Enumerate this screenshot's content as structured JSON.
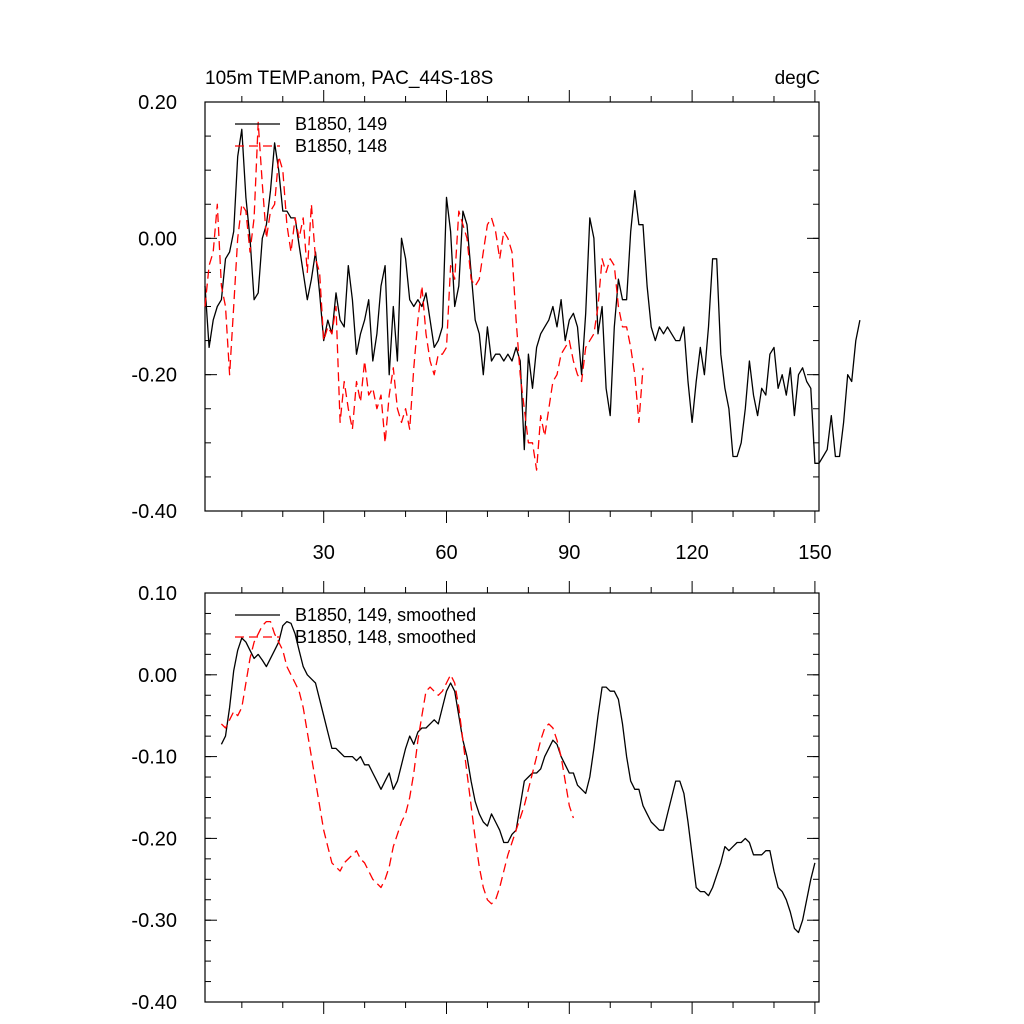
{
  "chart_data": [
    {
      "type": "line",
      "title_left": "105m TEMP.anom, PAC_44S-18S",
      "title_right": "degC",
      "xlim": [
        1,
        151
      ],
      "ylim": [
        -0.4,
        0.2
      ],
      "xticks": [
        30,
        60,
        90,
        120,
        150
      ],
      "yticks": [
        0.2,
        0.0,
        -0.2,
        -0.4
      ],
      "yticklabels": [
        "0.20",
        "0.00",
        "-0.20",
        "-0.40"
      ],
      "legend_position": "top-left",
      "series": [
        {
          "name": "B1850, 149",
          "color": "#000000",
          "dash": "solid",
          "x_start": 1,
          "values": [
            -0.07,
            -0.16,
            -0.12,
            -0.1,
            -0.09,
            -0.03,
            -0.02,
            0.01,
            0.12,
            0.16,
            0.06,
            0.0,
            -0.09,
            -0.08,
            0.0,
            0.02,
            0.07,
            0.14,
            0.1,
            0.04,
            0.04,
            0.03,
            0.03,
            -0.01,
            -0.05,
            -0.09,
            -0.06,
            -0.02,
            -0.08,
            -0.15,
            -0.12,
            -0.14,
            -0.08,
            -0.12,
            -0.13,
            -0.04,
            -0.09,
            -0.17,
            -0.14,
            -0.12,
            -0.09,
            -0.18,
            -0.14,
            -0.07,
            -0.04,
            -0.2,
            -0.1,
            -0.18,
            0.0,
            -0.03,
            -0.09,
            -0.1,
            -0.09,
            -0.1,
            -0.08,
            -0.12,
            -0.16,
            -0.15,
            -0.13,
            0.06,
            0.01,
            -0.1,
            -0.07,
            0.04,
            0.02,
            -0.05,
            -0.12,
            -0.14,
            -0.2,
            -0.13,
            -0.18,
            -0.17,
            -0.17,
            -0.18,
            -0.17,
            -0.18,
            -0.16,
            -0.18,
            -0.31,
            -0.17,
            -0.22,
            -0.16,
            -0.14,
            -0.13,
            -0.12,
            -0.1,
            -0.13,
            -0.09,
            -0.15,
            -0.12,
            -0.11,
            -0.13,
            -0.2,
            -0.11,
            0.03,
            0.0,
            -0.14,
            -0.1,
            -0.22,
            -0.26,
            -0.13,
            -0.06,
            -0.09,
            -0.09,
            0.01,
            0.07,
            0.02,
            0.02,
            -0.07,
            -0.13,
            -0.15,
            -0.13,
            -0.14,
            -0.13,
            -0.14,
            -0.15,
            -0.15,
            -0.13,
            -0.21,
            -0.27,
            -0.21,
            -0.16,
            -0.2,
            -0.13,
            -0.03,
            -0.03,
            -0.17,
            -0.22,
            -0.25,
            -0.32,
            -0.32,
            -0.3,
            -0.25,
            -0.18,
            -0.23,
            -0.26,
            -0.22,
            -0.23,
            -0.17,
            -0.16,
            -0.22,
            -0.2,
            -0.23,
            -0.19,
            -0.26,
            -0.2,
            -0.19,
            -0.21,
            -0.22,
            -0.33,
            -0.33,
            -0.32,
            -0.31,
            -0.26,
            -0.32,
            -0.32,
            -0.27,
            -0.2,
            -0.21,
            -0.15,
            -0.12
          ]
        },
        {
          "name": "B1850, 148",
          "color": "#ff0000",
          "dash": "dashed",
          "x_start": 1,
          "values": [
            -0.1,
            -0.04,
            -0.02,
            0.05,
            -0.07,
            -0.1,
            -0.2,
            -0.1,
            0.0,
            0.05,
            0.04,
            -0.02,
            0.03,
            0.17,
            0.08,
            0.0,
            0.04,
            0.05,
            0.12,
            0.1,
            0.02,
            -0.02,
            0.03,
            0.0,
            0.03,
            -0.05,
            0.05,
            -0.03,
            -0.05,
            -0.15,
            -0.13,
            -0.14,
            -0.1,
            -0.27,
            -0.21,
            -0.25,
            -0.28,
            -0.21,
            -0.24,
            -0.18,
            -0.23,
            -0.22,
            -0.25,
            -0.23,
            -0.3,
            -0.23,
            -0.19,
            -0.25,
            -0.27,
            -0.25,
            -0.28,
            -0.19,
            -0.12,
            -0.07,
            -0.14,
            -0.18,
            -0.2,
            -0.17,
            -0.17,
            -0.16,
            -0.04,
            -0.06,
            0.04,
            0.02,
            0.0,
            -0.06,
            -0.07,
            -0.06,
            -0.02,
            0.02,
            0.03,
            0.01,
            -0.03,
            0.01,
            0.0,
            -0.02,
            -0.12,
            -0.2,
            -0.25,
            -0.3,
            -0.3,
            -0.34,
            -0.26,
            -0.29,
            -0.25,
            -0.21,
            -0.2,
            -0.17,
            -0.16,
            -0.15,
            -0.18,
            -0.2,
            -0.21,
            -0.16,
            -0.15,
            -0.14,
            -0.1,
            -0.03,
            -0.05,
            -0.03,
            -0.04,
            -0.1,
            -0.13,
            -0.13,
            -0.16,
            -0.2,
            -0.27,
            -0.19
          ]
        }
      ]
    },
    {
      "type": "line",
      "xlim": [
        1,
        151
      ],
      "ylim": [
        -0.4,
        0.1
      ],
      "xticks": [
        30,
        60,
        90,
        120,
        150
      ],
      "yticks": [
        0.1,
        0.0,
        -0.1,
        -0.2,
        -0.3,
        -0.4
      ],
      "yticklabels": [
        "0.10",
        "0.00",
        "-0.10",
        "-0.20",
        "-0.30",
        "-0.40"
      ],
      "legend_position": "top-left",
      "series": [
        {
          "name": "B1850, 149, smoothed",
          "color": "#000000",
          "dash": "solid",
          "x_start": 5,
          "values": [
            -0.085,
            -0.075,
            -0.04,
            0.005,
            0.03,
            0.045,
            0.04,
            0.03,
            0.02,
            0.025,
            0.018,
            0.01,
            0.02,
            0.03,
            0.04,
            0.06,
            0.065,
            0.063,
            0.05,
            0.03,
            0.01,
            0.0,
            -0.005,
            -0.01,
            -0.03,
            -0.05,
            -0.07,
            -0.09,
            -0.09,
            -0.095,
            -0.1,
            -0.1,
            -0.1,
            -0.105,
            -0.1,
            -0.11,
            -0.11,
            -0.12,
            -0.13,
            -0.14,
            -0.13,
            -0.12,
            -0.14,
            -0.13,
            -0.11,
            -0.09,
            -0.075,
            -0.085,
            -0.07,
            -0.065,
            -0.065,
            -0.06,
            -0.055,
            -0.06,
            -0.04,
            -0.02,
            -0.01,
            -0.02,
            -0.05,
            -0.08,
            -0.1,
            -0.13,
            -0.155,
            -0.17,
            -0.18,
            -0.185,
            -0.17,
            -0.18,
            -0.19,
            -0.205,
            -0.205,
            -0.195,
            -0.19,
            -0.16,
            -0.13,
            -0.125,
            -0.12,
            -0.12,
            -0.115,
            -0.1,
            -0.09,
            -0.08,
            -0.085,
            -0.1,
            -0.11,
            -0.12,
            -0.12,
            -0.135,
            -0.14,
            -0.145,
            -0.125,
            -0.09,
            -0.05,
            -0.015,
            -0.015,
            -0.02,
            -0.02,
            -0.03,
            -0.06,
            -0.1,
            -0.13,
            -0.14,
            -0.14,
            -0.16,
            -0.17,
            -0.18,
            -0.185,
            -0.19,
            -0.19,
            -0.17,
            -0.15,
            -0.13,
            -0.13,
            -0.145,
            -0.18,
            -0.22,
            -0.26,
            -0.265,
            -0.265,
            -0.27,
            -0.26,
            -0.245,
            -0.23,
            -0.21,
            -0.215,
            -0.21,
            -0.205,
            -0.205,
            -0.2,
            -0.205,
            -0.22,
            -0.22,
            -0.22,
            -0.215,
            -0.215,
            -0.24,
            -0.26,
            -0.265,
            -0.275,
            -0.29,
            -0.31,
            -0.315,
            -0.3,
            -0.275,
            -0.25,
            -0.23
          ]
        },
        {
          "name": "B1850, 148, smoothed",
          "color": "#ff0000",
          "dash": "dashed",
          "x_start": 5,
          "values": [
            -0.06,
            -0.065,
            -0.055,
            -0.045,
            -0.05,
            -0.04,
            -0.01,
            0.02,
            0.04,
            0.05,
            0.06,
            0.065,
            0.065,
            0.05,
            0.04,
            0.03,
            0.01,
            0.0,
            -0.01,
            -0.02,
            -0.04,
            -0.07,
            -0.1,
            -0.13,
            -0.16,
            -0.19,
            -0.21,
            -0.23,
            -0.235,
            -0.24,
            -0.23,
            -0.225,
            -0.22,
            -0.215,
            -0.225,
            -0.23,
            -0.24,
            -0.25,
            -0.255,
            -0.26,
            -0.25,
            -0.235,
            -0.21,
            -0.195,
            -0.18,
            -0.17,
            -0.15,
            -0.12,
            -0.08,
            -0.05,
            -0.02,
            -0.015,
            -0.02,
            -0.025,
            -0.02,
            -0.01,
            0.0,
            -0.01,
            -0.04,
            -0.08,
            -0.12,
            -0.16,
            -0.2,
            -0.235,
            -0.26,
            -0.275,
            -0.28,
            -0.275,
            -0.26,
            -0.24,
            -0.22,
            -0.205,
            -0.19,
            -0.175,
            -0.16,
            -0.14,
            -0.12,
            -0.1,
            -0.08,
            -0.065,
            -0.06,
            -0.065,
            -0.08,
            -0.1,
            -0.13,
            -0.16,
            -0.175
          ]
        }
      ]
    }
  ]
}
